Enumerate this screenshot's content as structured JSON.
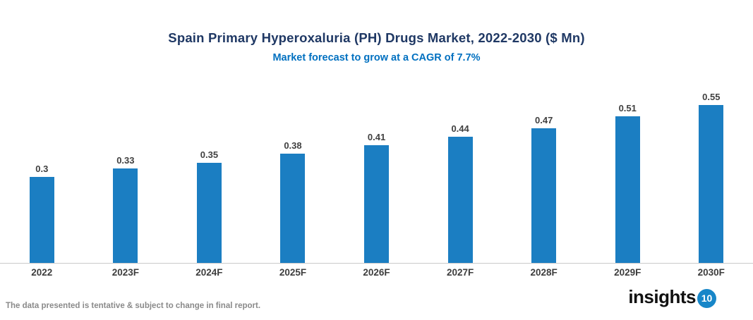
{
  "header": {
    "title": "Spain Primary Hyperoxaluria (PH) Drugs Market, 2022-2030 ($ Mn)",
    "subtitle": "Market forecast to grow at a CAGR of 7.7%"
  },
  "chart_data": {
    "type": "bar",
    "title": "Spain Primary Hyperoxaluria (PH) Drugs Market, 2022-2030 ($ Mn)",
    "subtitle": "Market forecast to grow at a CAGR of 7.7%",
    "categories": [
      "2022",
      "2023F",
      "2024F",
      "2025F",
      "2026F",
      "2027F",
      "2028F",
      "2029F",
      "2030F"
    ],
    "values": [
      0.3,
      0.33,
      0.35,
      0.38,
      0.41,
      0.44,
      0.47,
      0.51,
      0.55
    ],
    "value_labels": [
      "0.3",
      "0.33",
      "0.35",
      "0.38",
      "0.41",
      "0.44",
      "0.47",
      "0.51",
      "0.55"
    ],
    "xlabel": "",
    "ylabel": "",
    "ylim": [
      0,
      0.62
    ],
    "grid": false,
    "legend": false,
    "bar_color": "#1b7ec2",
    "data_label_position": "above-bar"
  },
  "footer": {
    "disclaimer": "The data presented is tentative & subject to change in final report.",
    "logo_word": "insights",
    "logo_number": "10"
  },
  "colors": {
    "title": "#1f3864",
    "subtitle": "#0070c0",
    "bar": "#1b7ec2",
    "axis_line": "#c9c9c9",
    "labels": "#404040",
    "disclaimer": "#8a8a8a",
    "logo_circle": "#1786c8"
  }
}
